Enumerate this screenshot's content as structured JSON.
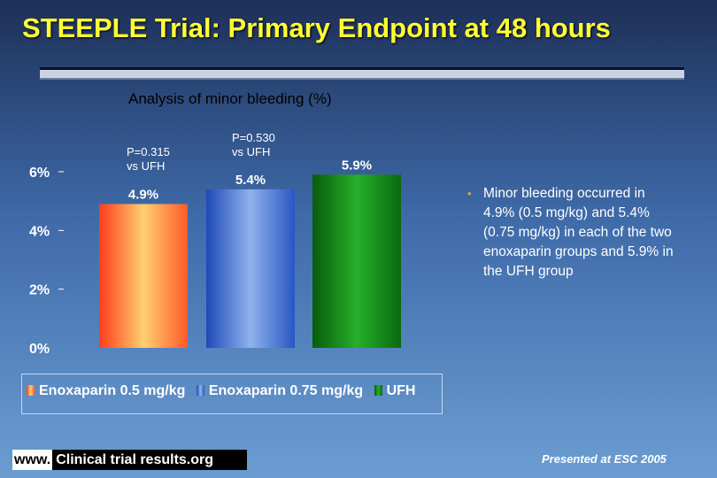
{
  "slide": {
    "title": "STEEPLE Trial: Primary Endpoint at 48 hours",
    "bullet": "Minor bleeding occurred in 4.9% (0.5 mg/kg) and 5.4% (0.75 mg/kg) in each of the two enoxaparin groups and 5.9% in the UFH group",
    "footer_www": "www.",
    "footer_site": "Clinical trial results.org",
    "presented": "Presented at ESC 2005"
  },
  "chart_data": {
    "type": "bar",
    "title": "Analysis of minor bleeding (%)",
    "xlabel": "",
    "ylabel": "",
    "ylim": [
      0,
      6
    ],
    "yticks": [
      0,
      2,
      4,
      6
    ],
    "ytick_labels": [
      "0%",
      "2%",
      "4%",
      "6%"
    ],
    "grid": false,
    "legend": "bottom",
    "categories": [
      "Enoxaparin 0.5 mg/kg",
      "Enoxaparin 0.75 mg/kg",
      "UFH"
    ],
    "values": [
      4.9,
      5.4,
      5.9
    ],
    "value_labels": [
      "4.9%",
      "5.4%",
      "5.9%"
    ],
    "colors": [
      "#ff6a2a",
      "#3a66cc",
      "#0e7a12"
    ],
    "annotations": [
      {
        "category": "Enoxaparin 0.5 mg/kg",
        "text": [
          "P=0.315",
          "vs UFH"
        ]
      },
      {
        "category": "Enoxaparin 0.75 mg/kg",
        "text": [
          "P=0.530",
          "vs UFH"
        ]
      }
    ]
  }
}
